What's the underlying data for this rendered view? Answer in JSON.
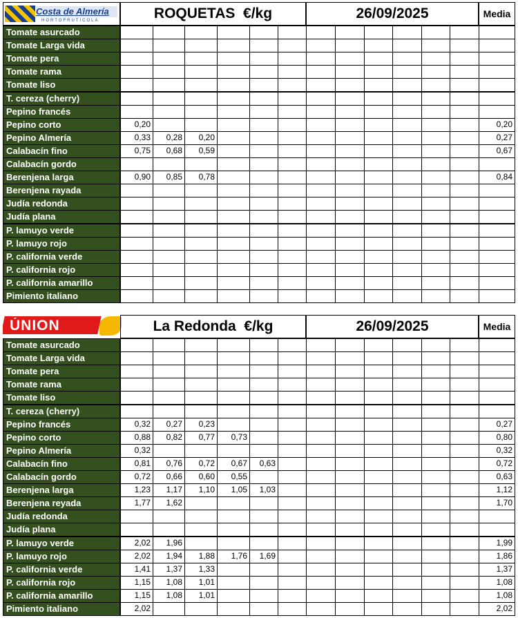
{
  "tables": [
    {
      "logo": {
        "name": "Costa de Almería",
        "tagline": "HORTOFRUTICOLA"
      },
      "title": "ROQUETAS  €/kg",
      "date": "26/09/2025",
      "media_header": "Media",
      "rows": [
        {
          "name": "Tomate asurcado",
          "prices": [],
          "media": null
        },
        {
          "name": "Tomate Larga vida",
          "prices": [],
          "media": null
        },
        {
          "name": "Tomate pera",
          "prices": [],
          "media": null
        },
        {
          "name": "Tomate rama",
          "prices": [],
          "media": null
        },
        {
          "name": "Tomate liso",
          "prices": [],
          "media": null
        },
        {
          "name": "T. cereza (cherry)",
          "prices": [],
          "media": null
        },
        {
          "name": "Pepino francés",
          "prices": [],
          "media": null
        },
        {
          "name": "Pepino corto",
          "prices": [
            "0,20"
          ],
          "media": "0,20"
        },
        {
          "name": "Pepino Almería",
          "prices": [
            "0,33",
            "0,28",
            "0,20"
          ],
          "media": "0,27"
        },
        {
          "name": "Calabacín fino",
          "prices": [
            "0,75",
            "0,68",
            "0,59"
          ],
          "media": "0,67"
        },
        {
          "name": "Calabacín gordo",
          "prices": [],
          "media": null
        },
        {
          "name": "Berenjena larga",
          "prices": [
            "0,90",
            "0,85",
            "0,78"
          ],
          "media": "0,84"
        },
        {
          "name": "Berenjena rayada",
          "prices": [],
          "media": null
        },
        {
          "name": "Judía redonda",
          "prices": [],
          "media": null
        },
        {
          "name": "Judía plana",
          "prices": [],
          "media": null
        },
        {
          "name": "P. lamuyo verde",
          "prices": [],
          "media": null
        },
        {
          "name": "P. lamuyo rojo",
          "prices": [],
          "media": null
        },
        {
          "name": "P. california verde",
          "prices": [],
          "media": null
        },
        {
          "name": "P. california rojo",
          "prices": [],
          "media": null
        },
        {
          "name": "P. california amarillo",
          "prices": [],
          "media": null
        },
        {
          "name": "Pimiento italiano",
          "prices": [],
          "media": null
        }
      ]
    },
    {
      "logo": {
        "name": "ÚNION"
      },
      "title": "La Redonda  €/kg",
      "date": "26/09/2025",
      "media_header": "Media",
      "rows": [
        {
          "name": "Tomate asurcado",
          "prices": [],
          "media": null
        },
        {
          "name": "Tomate Larga vida",
          "prices": [],
          "media": null
        },
        {
          "name": "Tomate pera",
          "prices": [],
          "media": null
        },
        {
          "name": "Tomate rama",
          "prices": [],
          "media": null
        },
        {
          "name": "Tomate liso",
          "prices": [],
          "media": null
        },
        {
          "name": "T. cereza (cherry)",
          "prices": [],
          "media": null
        },
        {
          "name": "Pepino francés",
          "prices": [
            "0,32",
            "0,27",
            "0,23"
          ],
          "media": "0,27"
        },
        {
          "name": "Pepino corto",
          "prices": [
            "0,88",
            "0,82",
            "0,77",
            "0,73"
          ],
          "media": "0,80"
        },
        {
          "name": "Pepino Almería",
          "prices": [
            "0,32"
          ],
          "media": "0,32"
        },
        {
          "name": "Calabacín fino",
          "prices": [
            "0,81",
            "0,76",
            "0,72",
            "0,67",
            "0,63"
          ],
          "media": "0,72"
        },
        {
          "name": "Calabacín gordo",
          "prices": [
            "0,72",
            "0,66",
            "0,60",
            "0,55"
          ],
          "media": "0,63"
        },
        {
          "name": "Berenjena larga",
          "prices": [
            "1,23",
            "1,17",
            "1,10",
            "1,05",
            "1,03"
          ],
          "media": "1,12"
        },
        {
          "name": "Berenjena reyada",
          "prices": [
            "1,77",
            "1,62"
          ],
          "media": "1,70"
        },
        {
          "name": "Judía redonda",
          "prices": [],
          "media": null
        },
        {
          "name": "Judía plana",
          "prices": [],
          "media": null
        },
        {
          "name": "P. lamuyo verde",
          "prices": [
            "2,02",
            "1,96"
          ],
          "media": "1,99"
        },
        {
          "name": "P. lamuyo rojo",
          "prices": [
            "2,02",
            "1,94",
            "1,88",
            "1,76",
            "1,69"
          ],
          "media": "1,86"
        },
        {
          "name": "P. california verde",
          "prices": [
            "1,41",
            "1,37",
            "1,33"
          ],
          "media": "1,37"
        },
        {
          "name": "P. california rojo",
          "prices": [
            "1,15",
            "1,08",
            "1,01"
          ],
          "media": "1,08"
        },
        {
          "name": "P. california amarillo",
          "prices": [
            "1,15",
            "1,08",
            "1,01"
          ],
          "media": "1,08"
        },
        {
          "name": "Pimiento italiano",
          "prices": [
            "2,02"
          ],
          "media": "2,02"
        }
      ]
    }
  ]
}
